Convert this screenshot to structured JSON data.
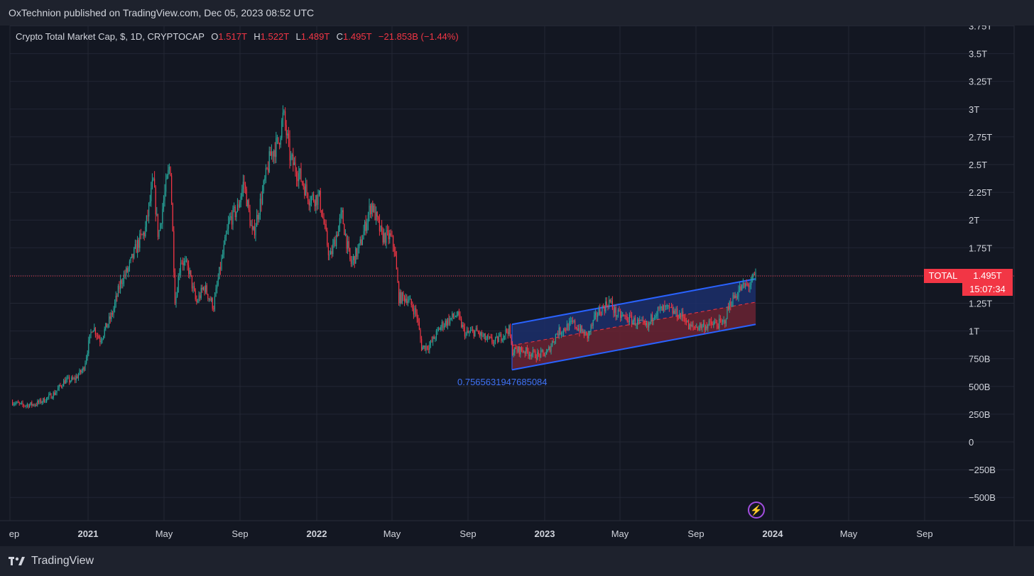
{
  "header": {
    "text": "OxTechnion published on TradingView.com, Dec 05, 2023 08:52 UTC"
  },
  "legend": {
    "title": "Crypto Total Market Cap, $, 1D, CRYPTOCAP",
    "o_label": "O",
    "o_value": "1.517T",
    "h_label": "H",
    "h_value": "1.522T",
    "l_label": "L",
    "l_value": "1.489T",
    "c_label": "C",
    "c_value": "1.495T",
    "change": "−21.853B (−1.44%)"
  },
  "price_tag": {
    "symbol": "TOTAL",
    "value": "1.495T",
    "countdown": "15:07:34"
  },
  "annotation": {
    "text": "0.7565631947685084"
  },
  "footer": {
    "brand": "TradingView"
  },
  "colors": {
    "up": "#26a69a",
    "down": "#f23645",
    "channel_line": "#2962ff",
    "channel_upper_fill": "#1c2f6b",
    "channel_lower_fill": "#6b2333",
    "background": "#131722",
    "grid": "#232734"
  },
  "chart_data": {
    "type": "candlestick",
    "title": "Crypto Total Market Cap, $, 1D, CRYPTOCAP",
    "y_unit": "$",
    "y_range": [
      -600000000000,
      3750000000000
    ],
    "y_ticks": [
      "3.75T",
      "3.5T",
      "3.25T",
      "3T",
      "2.75T",
      "2.5T",
      "2.25T",
      "2T",
      "1.75T",
      "1.5T",
      "1.25T",
      "1T",
      "750B",
      "500B",
      "250B",
      "0",
      "−250B",
      "−500B"
    ],
    "y_tick_values": [
      3.75,
      3.5,
      3.25,
      3,
      2.75,
      2.5,
      2.25,
      2,
      1.75,
      1.5,
      1.25,
      1,
      0.75,
      0.5,
      0.25,
      0,
      -0.25,
      -0.5
    ],
    "x_ticks": [
      "ep",
      "2021",
      "May",
      "Sep",
      "2022",
      "May",
      "Sep",
      "2023",
      "May",
      "Sep",
      "2024",
      "May",
      "Sep"
    ],
    "x_tick_dates": [
      "2020-09",
      "2021-01",
      "2021-05",
      "2021-09",
      "2022-01",
      "2022-05",
      "2022-09",
      "2023-01",
      "2023-05",
      "2023-09",
      "2024-01",
      "2024-05",
      "2024-09"
    ],
    "x_tick_bold": [
      false,
      true,
      false,
      false,
      true,
      false,
      false,
      true,
      false,
      false,
      true,
      false,
      false
    ],
    "series_path": [
      [
        "2020-09-05",
        0.36
      ],
      [
        "2020-09-20",
        0.33
      ],
      [
        "2020-10-10",
        0.34
      ],
      [
        "2020-10-25",
        0.38
      ],
      [
        "2020-11-10",
        0.44
      ],
      [
        "2020-11-25",
        0.55
      ],
      [
        "2020-12-10",
        0.56
      ],
      [
        "2020-12-25",
        0.66
      ],
      [
        "2021-01-08",
        1.05
      ],
      [
        "2021-01-20",
        0.92
      ],
      [
        "2021-02-08",
        1.15
      ],
      [
        "2021-02-22",
        1.45
      ],
      [
        "2021-03-05",
        1.55
      ],
      [
        "2021-03-20",
        1.78
      ],
      [
        "2021-04-01",
        1.9
      ],
      [
        "2021-04-14",
        2.35
      ],
      [
        "2021-04-22",
        1.85
      ],
      [
        "2021-05-01",
        2.2
      ],
      [
        "2021-05-11",
        2.52
      ],
      [
        "2021-05-19",
        1.25
      ],
      [
        "2021-05-28",
        1.65
      ],
      [
        "2021-06-10",
        1.55
      ],
      [
        "2021-06-22",
        1.25
      ],
      [
        "2021-07-05",
        1.4
      ],
      [
        "2021-07-20",
        1.22
      ],
      [
        "2021-08-01",
        1.6
      ],
      [
        "2021-08-15",
        2.0
      ],
      [
        "2021-08-28",
        2.1
      ],
      [
        "2021-09-07",
        2.35
      ],
      [
        "2021-09-21",
        1.85
      ],
      [
        "2021-10-05",
        2.2
      ],
      [
        "2021-10-20",
        2.6
      ],
      [
        "2021-11-01",
        2.7
      ],
      [
        "2021-11-09",
        2.95
      ],
      [
        "2021-11-20",
        2.55
      ],
      [
        "2021-12-05",
        2.4
      ],
      [
        "2021-12-20",
        2.2
      ],
      [
        "2022-01-05",
        2.2
      ],
      [
        "2022-01-22",
        1.65
      ],
      [
        "2022-02-10",
        2.05
      ],
      [
        "2022-02-24",
        1.6
      ],
      [
        "2022-03-10",
        1.75
      ],
      [
        "2022-03-29",
        2.15
      ],
      [
        "2022-04-15",
        1.85
      ],
      [
        "2022-04-28",
        1.85
      ],
      [
        "2022-05-05",
        1.75
      ],
      [
        "2022-05-12",
        1.3
      ],
      [
        "2022-05-25",
        1.3
      ],
      [
        "2022-06-10",
        1.15
      ],
      [
        "2022-06-18",
        0.85
      ],
      [
        "2022-07-01",
        0.87
      ],
      [
        "2022-07-20",
        1.05
      ],
      [
        "2022-08-14",
        1.15
      ],
      [
        "2022-08-28",
        0.97
      ],
      [
        "2022-09-13",
        1.0
      ],
      [
        "2022-09-28",
        0.93
      ],
      [
        "2022-10-14",
        0.9
      ],
      [
        "2022-11-05",
        1.02
      ],
      [
        "2022-11-10",
        0.82
      ],
      [
        "2022-11-25",
        0.83
      ],
      [
        "2022-12-20",
        0.78
      ],
      [
        "2023-01-05",
        0.8
      ],
      [
        "2023-01-20",
        0.98
      ],
      [
        "2023-02-15",
        1.07
      ],
      [
        "2023-03-10",
        0.95
      ],
      [
        "2023-03-25",
        1.15
      ],
      [
        "2023-04-14",
        1.27
      ],
      [
        "2023-04-25",
        1.15
      ],
      [
        "2023-05-20",
        1.1
      ],
      [
        "2023-06-15",
        1.03
      ],
      [
        "2023-06-25",
        1.17
      ],
      [
        "2023-07-15",
        1.2
      ],
      [
        "2023-08-15",
        1.12
      ],
      [
        "2023-08-20",
        1.03
      ],
      [
        "2023-09-15",
        1.05
      ],
      [
        "2023-10-15",
        1.07
      ],
      [
        "2023-10-25",
        1.25
      ],
      [
        "2023-11-10",
        1.38
      ],
      [
        "2023-11-25",
        1.42
      ],
      [
        "2023-12-05",
        1.495
      ]
    ],
    "channel": {
      "start_date": "2022-11-10",
      "end_date": "2023-12-05",
      "upper": [
        1.06,
        1.47
      ],
      "middle": [
        0.87,
        1.26
      ],
      "lower": [
        0.65,
        1.06
      ]
    },
    "last_price_line": 1.495,
    "grid": true
  }
}
